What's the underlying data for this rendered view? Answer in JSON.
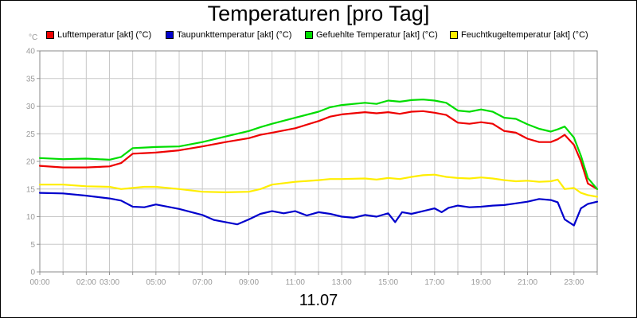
{
  "chart_data": {
    "type": "line",
    "title": "Temperaturen [pro Tag]",
    "x_caption": "11.07",
    "y_unit": "°C",
    "ylim": [
      0,
      40
    ],
    "y_ticks": [
      "0",
      "5",
      "10",
      "15",
      "20",
      "25",
      "30",
      "35",
      "40"
    ],
    "x_ticks": [
      "00:00",
      "02:00",
      "03:00",
      "05:00",
      "07:00",
      "09:00",
      "11:00",
      "13:00",
      "15:00",
      "17:00",
      "19:00",
      "21:00",
      "23:00"
    ],
    "x_tick_hours": [
      0,
      2,
      3,
      5,
      7,
      9,
      11,
      13,
      15,
      17,
      19,
      21,
      23
    ],
    "xlim_hours": [
      0,
      24
    ],
    "grid": true,
    "legend_position": "top",
    "series": [
      {
        "name": "Lufttemperatur [akt] (°C)",
        "color": "#ee0000",
        "x": [
          0,
          1,
          2,
          3,
          3.5,
          4,
          4.5,
          5,
          6,
          7,
          8,
          9,
          9.5,
          10,
          11,
          12,
          12.5,
          13,
          14,
          14.5,
          15,
          15.5,
          16,
          16.5,
          17,
          17.5,
          18,
          18.5,
          19,
          19.5,
          20,
          20.5,
          21,
          21.5,
          22,
          22.3,
          22.6,
          23,
          23.3,
          23.6,
          24
        ],
        "values": [
          19.2,
          18.9,
          18.9,
          19.1,
          19.7,
          21.4,
          21.5,
          21.6,
          22.0,
          22.7,
          23.5,
          24.2,
          24.8,
          25.2,
          26.0,
          27.3,
          28.1,
          28.5,
          28.9,
          28.7,
          28.9,
          28.6,
          29.0,
          29.1,
          28.8,
          28.4,
          27.0,
          26.8,
          27.1,
          26.8,
          25.5,
          25.2,
          24.1,
          23.5,
          23.5,
          24.0,
          24.8,
          23.0,
          20.0,
          16.0,
          15.0
        ]
      },
      {
        "name": "Taupunkttemperatur [akt] (°C)",
        "color": "#0000cc",
        "x": [
          0,
          1,
          2,
          3,
          3.5,
          4,
          4.5,
          5,
          6,
          7,
          7.5,
          8,
          8.5,
          9,
          9.5,
          10,
          10.5,
          11,
          11.5,
          12,
          12.5,
          13,
          13.5,
          14,
          14.5,
          15,
          15.3,
          15.6,
          16,
          16.5,
          17,
          17.3,
          17.6,
          18,
          18.5,
          19,
          19.5,
          20,
          20.5,
          21,
          21.5,
          22,
          22.3,
          22.6,
          23,
          23.3,
          23.6,
          24
        ],
        "values": [
          14.3,
          14.2,
          13.8,
          13.3,
          12.9,
          11.8,
          11.7,
          12.2,
          11.4,
          10.3,
          9.4,
          9.0,
          8.6,
          9.5,
          10.5,
          11.0,
          10.6,
          11.0,
          10.2,
          10.8,
          10.5,
          10.0,
          9.8,
          10.3,
          10.0,
          10.6,
          9.0,
          10.8,
          10.5,
          11.0,
          11.5,
          10.8,
          11.6,
          12.0,
          11.7,
          11.8,
          12.0,
          12.1,
          12.4,
          12.7,
          13.2,
          13.0,
          12.6,
          9.5,
          8.4,
          11.5,
          12.3,
          12.7
        ]
      },
      {
        "name": "Gefuehlte Temperatur [akt] (°C)",
        "color": "#00dd00",
        "x": [
          0,
          1,
          2,
          3,
          3.5,
          4,
          4.5,
          5,
          6,
          7,
          8,
          9,
          9.5,
          10,
          11,
          12,
          12.5,
          13,
          14,
          14.5,
          15,
          15.5,
          16,
          16.5,
          17,
          17.5,
          18,
          18.5,
          19,
          19.5,
          20,
          20.5,
          21,
          21.5,
          22,
          22.3,
          22.6,
          23,
          23.3,
          23.6,
          24
        ],
        "values": [
          20.6,
          20.4,
          20.5,
          20.3,
          20.8,
          22.4,
          22.5,
          22.6,
          22.7,
          23.5,
          24.5,
          25.5,
          26.2,
          26.8,
          27.9,
          29.0,
          29.8,
          30.2,
          30.6,
          30.4,
          31.0,
          30.8,
          31.1,
          31.2,
          31.0,
          30.6,
          29.2,
          29.0,
          29.4,
          29.0,
          27.9,
          27.7,
          26.7,
          25.9,
          25.4,
          25.8,
          26.3,
          24.3,
          21.0,
          17.0,
          15.0
        ]
      },
      {
        "name": "Feuchtkugeltemperatur [akt] (°C)",
        "color": "#ffee00",
        "x": [
          0,
          1,
          2,
          3,
          3.5,
          4,
          4.5,
          5,
          6,
          7,
          8,
          9,
          9.5,
          10,
          11,
          12,
          12.5,
          13,
          14,
          14.5,
          15,
          15.5,
          16,
          16.5,
          17,
          17.5,
          18,
          18.5,
          19,
          19.5,
          20,
          20.5,
          21,
          21.5,
          22,
          22.3,
          22.6,
          23,
          23.3,
          23.6,
          24
        ],
        "values": [
          15.8,
          15.8,
          15.5,
          15.4,
          15.0,
          15.2,
          15.4,
          15.4,
          15.0,
          14.5,
          14.4,
          14.5,
          15.0,
          15.8,
          16.3,
          16.6,
          16.8,
          16.8,
          16.9,
          16.7,
          17.0,
          16.8,
          17.2,
          17.5,
          17.6,
          17.2,
          17.0,
          16.9,
          17.1,
          16.9,
          16.6,
          16.4,
          16.5,
          16.3,
          16.4,
          16.7,
          15.0,
          15.2,
          14.3,
          13.9,
          13.6
        ]
      }
    ]
  }
}
